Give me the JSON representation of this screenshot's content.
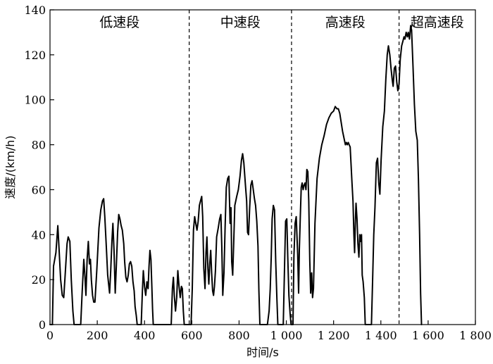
{
  "chart_data": {
    "type": "line",
    "xlabel": "时间/s",
    "ylabel": "速度/(km/h)",
    "xlim": [
      0,
      1800
    ],
    "ylim": [
      0,
      140
    ],
    "x_ticks": [
      0,
      200,
      400,
      600,
      800,
      1000,
      1200,
      1400,
      1600,
      1800
    ],
    "x_tick_labels": [
      "0",
      "200",
      "400",
      "600",
      "800",
      "1 000",
      "1 200",
      "1 400",
      "1 600",
      "1 800"
    ],
    "y_ticks": [
      0,
      20,
      40,
      60,
      80,
      100,
      120,
      140
    ],
    "y_tick_labels": [
      "0",
      "20",
      "40",
      "60",
      "80",
      "100",
      "120",
      "140"
    ],
    "grid": false,
    "phase_boundaries": [
      589,
      1022,
      1477
    ],
    "phases": [
      {
        "label": "低速段",
        "x_start": 0,
        "x_end": 589
      },
      {
        "label": "中速段",
        "x_start": 589,
        "x_end": 1022
      },
      {
        "label": "高速段",
        "x_start": 1022,
        "x_end": 1477
      },
      {
        "label": "超高速段",
        "x_start": 1477,
        "x_end": 1800
      }
    ],
    "series": [
      {
        "color": "#000000",
        "points": [
          [
            0,
            0
          ],
          [
            10,
            0
          ],
          [
            15,
            26
          ],
          [
            25,
            32
          ],
          [
            33,
            44
          ],
          [
            38,
            34
          ],
          [
            45,
            20
          ],
          [
            52,
            13
          ],
          [
            58,
            12
          ],
          [
            64,
            22
          ],
          [
            72,
            36
          ],
          [
            77,
            39
          ],
          [
            84,
            37
          ],
          [
            90,
            20
          ],
          [
            97,
            6
          ],
          [
            102,
            0
          ],
          [
            130,
            0
          ],
          [
            136,
            14
          ],
          [
            143,
            29
          ],
          [
            148,
            21
          ],
          [
            152,
            13
          ],
          [
            157,
            29
          ],
          [
            162,
            37
          ],
          [
            167,
            27
          ],
          [
            171,
            29
          ],
          [
            175,
            20
          ],
          [
            180,
            13
          ],
          [
            185,
            10
          ],
          [
            190,
            10
          ],
          [
            198,
            24
          ],
          [
            207,
            43
          ],
          [
            215,
            51
          ],
          [
            222,
            55
          ],
          [
            227,
            56
          ],
          [
            232,
            48
          ],
          [
            238,
            35
          ],
          [
            244,
            22
          ],
          [
            252,
            14
          ],
          [
            257,
            24
          ],
          [
            262,
            37
          ],
          [
            266,
            45
          ],
          [
            271,
            33
          ],
          [
            276,
            14
          ],
          [
            281,
            27
          ],
          [
            286,
            41
          ],
          [
            291,
            49
          ],
          [
            296,
            47
          ],
          [
            301,
            44
          ],
          [
            306,
            42
          ],
          [
            312,
            36
          ],
          [
            316,
            28
          ],
          [
            321,
            21
          ],
          [
            326,
            19
          ],
          [
            331,
            22
          ],
          [
            336,
            27
          ],
          [
            341,
            28
          ],
          [
            346,
            26
          ],
          [
            351,
            19
          ],
          [
            356,
            15
          ],
          [
            360,
            8
          ],
          [
            365,
            4
          ],
          [
            369,
            0
          ],
          [
            386,
            0
          ],
          [
            391,
            15
          ],
          [
            395,
            24
          ],
          [
            400,
            17
          ],
          [
            405,
            13
          ],
          [
            410,
            19
          ],
          [
            415,
            16
          ],
          [
            419,
            26
          ],
          [
            423,
            33
          ],
          [
            427,
            29
          ],
          [
            431,
            17
          ],
          [
            434,
            7
          ],
          [
            437,
            0
          ],
          [
            513,
            0
          ],
          [
            518,
            16
          ],
          [
            522,
            21
          ],
          [
            526,
            13
          ],
          [
            531,
            6
          ],
          [
            536,
            12
          ],
          [
            541,
            24
          ],
          [
            546,
            17
          ],
          [
            551,
            12
          ],
          [
            556,
            17
          ],
          [
            560,
            16
          ],
          [
            564,
            6
          ],
          [
            568,
            0
          ],
          [
            597,
            0
          ],
          [
            602,
            16
          ],
          [
            607,
            42
          ],
          [
            612,
            48
          ],
          [
            617,
            45
          ],
          [
            622,
            42
          ],
          [
            627,
            46
          ],
          [
            632,
            53
          ],
          [
            637,
            55
          ],
          [
            642,
            57
          ],
          [
            646,
            48
          ],
          [
            651,
            25
          ],
          [
            656,
            16
          ],
          [
            660,
            32
          ],
          [
            664,
            39
          ],
          [
            668,
            25
          ],
          [
            672,
            18
          ],
          [
            676,
            27
          ],
          [
            680,
            33
          ],
          [
            684,
            23
          ],
          [
            688,
            15
          ],
          [
            692,
            13
          ],
          [
            696,
            17
          ],
          [
            700,
            24
          ],
          [
            705,
            39
          ],
          [
            712,
            43
          ],
          [
            718,
            47
          ],
          [
            723,
            49
          ],
          [
            727,
            35
          ],
          [
            731,
            13
          ],
          [
            736,
            23
          ],
          [
            741,
            43
          ],
          [
            746,
            61
          ],
          [
            752,
            65
          ],
          [
            757,
            66
          ],
          [
            762,
            45
          ],
          [
            766,
            52
          ],
          [
            769,
            28
          ],
          [
            773,
            22
          ],
          [
            777,
            35
          ],
          [
            782,
            53
          ],
          [
            790,
            57
          ],
          [
            797,
            60
          ],
          [
            804,
            66
          ],
          [
            810,
            73
          ],
          [
            815,
            76
          ],
          [
            820,
            72
          ],
          [
            827,
            62
          ],
          [
            832,
            55
          ],
          [
            836,
            41
          ],
          [
            840,
            40
          ],
          [
            845,
            52
          ],
          [
            850,
            62
          ],
          [
            855,
            64
          ],
          [
            860,
            60
          ],
          [
            865,
            56
          ],
          [
            870,
            53
          ],
          [
            875,
            46
          ],
          [
            880,
            35
          ],
          [
            884,
            15
          ],
          [
            888,
            0
          ],
          [
            920,
            0
          ],
          [
            927,
            6
          ],
          [
            932,
            16
          ],
          [
            936,
            30
          ],
          [
            940,
            47
          ],
          [
            945,
            53
          ],
          [
            950,
            51
          ],
          [
            955,
            28
          ],
          [
            960,
            12
          ],
          [
            964,
            0
          ],
          [
            987,
            0
          ],
          [
            992,
            24
          ],
          [
            997,
            46
          ],
          [
            1002,
            47
          ],
          [
            1006,
            30
          ],
          [
            1011,
            13
          ],
          [
            1016,
            5
          ],
          [
            1020,
            0
          ],
          [
            1028,
            0
          ],
          [
            1032,
            30
          ],
          [
            1037,
            45
          ],
          [
            1042,
            48
          ],
          [
            1048,
            31
          ],
          [
            1052,
            14
          ],
          [
            1055,
            33
          ],
          [
            1059,
            48
          ],
          [
            1063,
            61
          ],
          [
            1067,
            63
          ],
          [
            1071,
            60
          ],
          [
            1075,
            62
          ],
          [
            1079,
            63
          ],
          [
            1083,
            60
          ],
          [
            1087,
            69
          ],
          [
            1091,
            68
          ],
          [
            1095,
            55
          ],
          [
            1099,
            29
          ],
          [
            1103,
            14
          ],
          [
            1107,
            23
          ],
          [
            1111,
            12
          ],
          [
            1115,
            16
          ],
          [
            1121,
            45
          ],
          [
            1130,
            65
          ],
          [
            1140,
            74
          ],
          [
            1150,
            80
          ],
          [
            1160,
            84
          ],
          [
            1170,
            89
          ],
          [
            1180,
            92
          ],
          [
            1190,
            94
          ],
          [
            1200,
            95
          ],
          [
            1207,
            97
          ],
          [
            1214,
            96
          ],
          [
            1220,
            96
          ],
          [
            1226,
            94
          ],
          [
            1232,
            90
          ],
          [
            1238,
            86
          ],
          [
            1244,
            83
          ],
          [
            1250,
            80
          ],
          [
            1254,
            81
          ],
          [
            1258,
            80
          ],
          [
            1262,
            81
          ],
          [
            1266,
            80
          ],
          [
            1270,
            79
          ],
          [
            1274,
            71
          ],
          [
            1278,
            63
          ],
          [
            1282,
            55
          ],
          [
            1286,
            40
          ],
          [
            1289,
            32
          ],
          [
            1292,
            45
          ],
          [
            1295,
            54
          ],
          [
            1299,
            47
          ],
          [
            1303,
            36
          ],
          [
            1307,
            30
          ],
          [
            1311,
            40
          ],
          [
            1314,
            37
          ],
          [
            1318,
            40
          ],
          [
            1321,
            22
          ],
          [
            1325,
            19
          ],
          [
            1330,
            12
          ],
          [
            1334,
            0
          ],
          [
            1360,
            0
          ],
          [
            1365,
            19
          ],
          [
            1370,
            40
          ],
          [
            1375,
            52
          ],
          [
            1381,
            72
          ],
          [
            1386,
            74
          ],
          [
            1391,
            63
          ],
          [
            1396,
            58
          ],
          [
            1401,
            73
          ],
          [
            1408,
            88
          ],
          [
            1415,
            95
          ],
          [
            1421,
            109
          ],
          [
            1427,
            120
          ],
          [
            1432,
            124
          ],
          [
            1438,
            120
          ],
          [
            1443,
            114
          ],
          [
            1448,
            109
          ],
          [
            1452,
            106
          ],
          [
            1457,
            114
          ],
          [
            1462,
            115
          ],
          [
            1467,
            108
          ],
          [
            1472,
            104
          ],
          [
            1477,
            107
          ],
          [
            1482,
            118
          ],
          [
            1488,
            124
          ],
          [
            1493,
            126
          ],
          [
            1498,
            128
          ],
          [
            1502,
            127
          ],
          [
            1507,
            130
          ],
          [
            1512,
            128
          ],
          [
            1516,
            130
          ],
          [
            1521,
            127
          ],
          [
            1526,
            133
          ],
          [
            1530,
            131
          ],
          [
            1536,
            115
          ],
          [
            1542,
            98
          ],
          [
            1548,
            86
          ],
          [
            1554,
            82
          ],
          [
            1559,
            65
          ],
          [
            1564,
            40
          ],
          [
            1568,
            14
          ],
          [
            1572,
            0
          ]
        ]
      }
    ]
  }
}
